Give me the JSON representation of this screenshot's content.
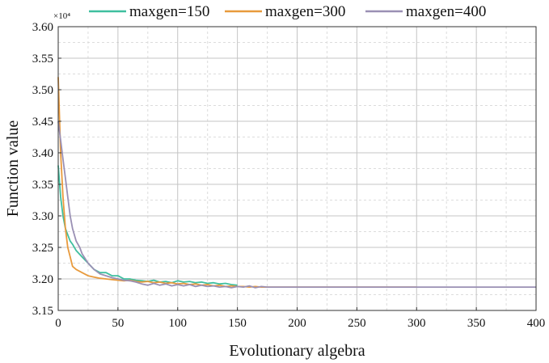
{
  "chart_data": {
    "type": "line",
    "title": "",
    "xlabel": "Evolutionary algebra",
    "ylabel": "Function value",
    "y_multiplier_label": "×10⁴",
    "xlim": [
      0,
      400
    ],
    "ylim": [
      3.15,
      3.6
    ],
    "x_ticks": [
      0,
      50,
      100,
      150,
      200,
      250,
      300,
      350,
      400
    ],
    "y_ticks": [
      3.15,
      3.2,
      3.25,
      3.3,
      3.35,
      3.4,
      3.45,
      3.5,
      3.55,
      3.6
    ],
    "grid": true,
    "legend_position": "top",
    "series": [
      {
        "name": "maxgen=150",
        "color": "#3fbf9f",
        "points": [
          [
            0,
            3.38
          ],
          [
            2,
            3.33
          ],
          [
            4,
            3.3
          ],
          [
            6,
            3.28
          ],
          [
            8,
            3.27
          ],
          [
            10,
            3.26
          ],
          [
            12,
            3.255
          ],
          [
            15,
            3.245
          ],
          [
            20,
            3.235
          ],
          [
            25,
            3.225
          ],
          [
            30,
            3.215
          ],
          [
            35,
            3.21
          ],
          [
            40,
            3.21
          ],
          [
            45,
            3.205
          ],
          [
            50,
            3.205
          ],
          [
            55,
            3.2
          ],
          [
            60,
            3.2
          ],
          [
            65,
            3.198
          ],
          [
            70,
            3.197
          ],
          [
            75,
            3.196
          ],
          [
            80,
            3.198
          ],
          [
            85,
            3.195
          ],
          [
            90,
            3.196
          ],
          [
            95,
            3.194
          ],
          [
            100,
            3.197
          ],
          [
            105,
            3.195
          ],
          [
            110,
            3.196
          ],
          [
            115,
            3.194
          ],
          [
            120,
            3.195
          ],
          [
            125,
            3.193
          ],
          [
            130,
            3.194
          ],
          [
            135,
            3.192
          ],
          [
            140,
            3.193
          ],
          [
            145,
            3.191
          ],
          [
            150,
            3.19
          ]
        ]
      },
      {
        "name": "maxgen=300",
        "color": "#e89a3c",
        "points": [
          [
            0,
            3.52
          ],
          [
            2,
            3.4
          ],
          [
            4,
            3.33
          ],
          [
            6,
            3.28
          ],
          [
            8,
            3.25
          ],
          [
            10,
            3.235
          ],
          [
            12,
            3.22
          ],
          [
            15,
            3.215
          ],
          [
            20,
            3.21
          ],
          [
            25,
            3.205
          ],
          [
            30,
            3.203
          ],
          [
            35,
            3.201
          ],
          [
            40,
            3.2
          ],
          [
            45,
            3.199
          ],
          [
            50,
            3.198
          ],
          [
            55,
            3.197
          ],
          [
            60,
            3.198
          ],
          [
            65,
            3.196
          ],
          [
            70,
            3.195
          ],
          [
            75,
            3.196
          ],
          [
            80,
            3.194
          ],
          [
            85,
            3.195
          ],
          [
            90,
            3.193
          ],
          [
            95,
            3.194
          ],
          [
            100,
            3.192
          ],
          [
            105,
            3.193
          ],
          [
            110,
            3.191
          ],
          [
            115,
            3.192
          ],
          [
            120,
            3.19
          ],
          [
            125,
            3.191
          ],
          [
            130,
            3.189
          ],
          [
            135,
            3.19
          ],
          [
            140,
            3.188
          ],
          [
            145,
            3.189
          ],
          [
            150,
            3.188
          ],
          [
            155,
            3.188
          ],
          [
            160,
            3.187
          ],
          [
            165,
            3.188
          ],
          [
            170,
            3.187
          ],
          [
            175,
            3.187
          ],
          [
            180,
            3.187
          ],
          [
            200,
            3.187
          ],
          [
            250,
            3.187
          ],
          [
            300,
            3.187
          ]
        ]
      },
      {
        "name": "maxgen=400",
        "color": "#9a90b4",
        "points": [
          [
            0,
            3.45
          ],
          [
            2,
            3.42
          ],
          [
            4,
            3.39
          ],
          [
            6,
            3.36
          ],
          [
            8,
            3.33
          ],
          [
            10,
            3.3
          ],
          [
            12,
            3.28
          ],
          [
            15,
            3.26
          ],
          [
            18,
            3.25
          ],
          [
            20,
            3.24
          ],
          [
            25,
            3.225
          ],
          [
            30,
            3.215
          ],
          [
            35,
            3.208
          ],
          [
            40,
            3.205
          ],
          [
            45,
            3.202
          ],
          [
            50,
            3.2
          ],
          [
            55,
            3.198
          ],
          [
            60,
            3.197
          ],
          [
            65,
            3.195
          ],
          [
            70,
            3.192
          ],
          [
            75,
            3.19
          ],
          [
            80,
            3.193
          ],
          [
            85,
            3.19
          ],
          [
            90,
            3.192
          ],
          [
            95,
            3.189
          ],
          [
            100,
            3.191
          ],
          [
            105,
            3.189
          ],
          [
            110,
            3.191
          ],
          [
            115,
            3.188
          ],
          [
            120,
            3.19
          ],
          [
            125,
            3.188
          ],
          [
            130,
            3.189
          ],
          [
            135,
            3.187
          ],
          [
            140,
            3.188
          ],
          [
            145,
            3.186
          ],
          [
            150,
            3.188
          ],
          [
            155,
            3.187
          ],
          [
            160,
            3.189
          ],
          [
            165,
            3.186
          ],
          [
            170,
            3.188
          ],
          [
            175,
            3.187
          ],
          [
            180,
            3.187
          ],
          [
            200,
            3.187
          ],
          [
            250,
            3.187
          ],
          [
            300,
            3.187
          ],
          [
            350,
            3.187
          ],
          [
            400,
            3.187
          ]
        ]
      }
    ]
  }
}
